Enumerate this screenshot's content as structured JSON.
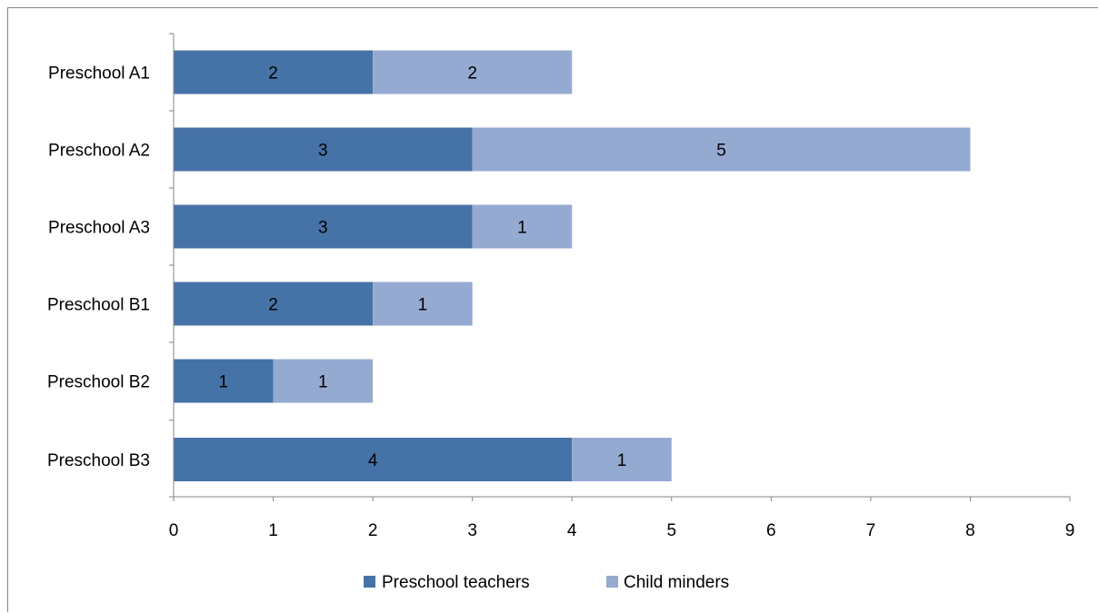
{
  "chart_data": {
    "type": "bar",
    "orientation": "horizontal",
    "stacked": true,
    "categories": [
      "Preschool A1",
      "Preschool A2",
      "Preschool A3",
      "Preschool B1",
      "Preschool B2",
      "Preschool B3"
    ],
    "series": [
      {
        "name": "Preschool teachers",
        "color": "#4673A7",
        "values": [
          2,
          3,
          3,
          2,
          1,
          4
        ]
      },
      {
        "name": "Child minders",
        "color": "#95AAD1",
        "values": [
          2,
          5,
          1,
          1,
          1,
          1
        ]
      }
    ],
    "xlim": [
      0,
      9
    ],
    "xticks": [
      "0",
      "1",
      "2",
      "3",
      "4",
      "5",
      "6",
      "7",
      "8",
      "9"
    ],
    "grid": false,
    "data_labels": true,
    "legend_position": "bottom"
  }
}
